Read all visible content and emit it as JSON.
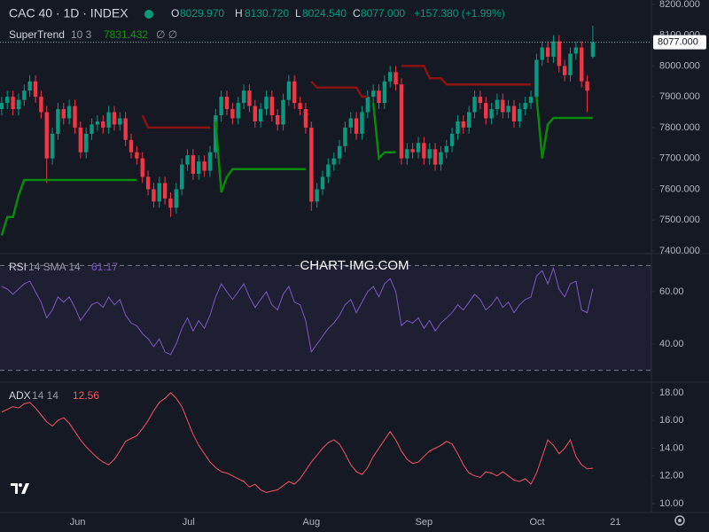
{
  "watermark": "CHART-IMG.COM",
  "chart_data": [
    {
      "type": "candlestick",
      "title": "CAC 40 · 1D · INDEX",
      "legend_values": [
        {
          "key": "O",
          "value": 8029.97,
          "label": "8029.970"
        },
        {
          "key": "H",
          "value": 8130.72,
          "label": "8130.720"
        },
        {
          "key": "L",
          "value": 8024.54,
          "label": "8024.540"
        },
        {
          "key": "C",
          "value": 8077,
          "label": "8077.000"
        }
      ],
      "change_label": "+157.380 (+1.99%)",
      "up_color": "#089981",
      "down_color": "#f23645",
      "ylim": [
        7394,
        8214
      ],
      "yticks": [
        {
          "value": 7400,
          "label": "7400.000"
        },
        {
          "value": 7500,
          "label": "7500.000"
        },
        {
          "value": 7600,
          "label": "7600.000"
        },
        {
          "value": 7700,
          "label": "7700.000"
        },
        {
          "value": 7800,
          "label": "7800.000"
        },
        {
          "value": 7900,
          "label": "7900.000"
        },
        {
          "value": 8000,
          "label": "8000.000"
        },
        {
          "value": 8100,
          "label": "8100.000"
        },
        {
          "value": 8200,
          "label": "8200.000"
        }
      ],
      "xlim": [
        -0.3,
        115.4
      ],
      "xticks": [
        {
          "value": 13.5,
          "label": "Jun"
        },
        {
          "value": 33.2,
          "label": "Jul"
        },
        {
          "value": 55,
          "label": "Aug"
        },
        {
          "value": 75,
          "label": "Sep"
        },
        {
          "value": 95.1,
          "label": "Oct"
        },
        {
          "value": 109,
          "label": "21"
        }
      ],
      "open": [
        7860,
        7880,
        7900,
        7860,
        7890,
        7920,
        7950,
        7900,
        7850,
        7700,
        7780,
        7860,
        7830,
        7870,
        7800,
        7720,
        7780,
        7810,
        7820,
        7800,
        7850,
        7810,
        7830,
        7760,
        7720,
        7700,
        7640,
        7600,
        7560,
        7620,
        7570,
        7540,
        7600,
        7680,
        7710,
        7650,
        7690,
        7660,
        7720,
        7840,
        7900,
        7860,
        7830,
        7880,
        7920,
        7870,
        7820,
        7860,
        7900,
        7840,
        7810,
        7890,
        7950,
        7880,
        7860,
        7800,
        7560,
        7600,
        7640,
        7680,
        7700,
        7740,
        7800,
        7830,
        7780,
        7850,
        7900,
        7920,
        7880,
        7950,
        7980,
        7940,
        7700,
        7730,
        7720,
        7750,
        7700,
        7730,
        7680,
        7720,
        7740,
        7780,
        7820,
        7800,
        7850,
        7900,
        7880,
        7830,
        7860,
        7890,
        7850,
        7870,
        7820,
        7860,
        7880,
        7900,
        8020,
        8060,
        8030,
        8080,
        8000,
        7970,
        8040,
        8060,
        7950,
        8029.97
      ],
      "high": [
        7900,
        7920,
        7920,
        7910,
        7940,
        7970,
        7970,
        7920,
        7870,
        7800,
        7880,
        7880,
        7890,
        7890,
        7820,
        7800,
        7830,
        7840,
        7840,
        7870,
        7870,
        7850,
        7850,
        7780,
        7740,
        7720,
        7660,
        7620,
        7640,
        7640,
        7590,
        7620,
        7700,
        7730,
        7730,
        7710,
        7710,
        7740,
        7860,
        7920,
        7920,
        7880,
        7900,
        7940,
        7940,
        7890,
        7880,
        7920,
        7920,
        7860,
        7910,
        7970,
        7970,
        7900,
        7880,
        7820,
        7620,
        7660,
        7700,
        7720,
        7760,
        7820,
        7850,
        7850,
        7870,
        7920,
        7940,
        7940,
        7970,
        8000,
        8000,
        7960,
        7750,
        7750,
        7770,
        7770,
        7750,
        7750,
        7740,
        7760,
        7800,
        7840,
        7840,
        7870,
        7920,
        7920,
        7900,
        7880,
        7910,
        7910,
        7890,
        7890,
        7880,
        7900,
        7920,
        8040,
        8080,
        8080,
        8100,
        8100,
        8020,
        8060,
        8080,
        8080,
        7970,
        8130.72
      ],
      "low": [
        7840,
        7860,
        7840,
        7840,
        7870,
        7900,
        7880,
        7830,
        7620,
        7680,
        7760,
        7810,
        7810,
        7780,
        7700,
        7700,
        7760,
        7790,
        7780,
        7780,
        7790,
        7790,
        7740,
        7700,
        7680,
        7620,
        7580,
        7540,
        7540,
        7550,
        7510,
        7520,
        7580,
        7660,
        7630,
        7630,
        7640,
        7640,
        7700,
        7820,
        7840,
        7810,
        7810,
        7860,
        7850,
        7800,
        7800,
        7840,
        7820,
        7790,
        7790,
        7870,
        7860,
        7840,
        7780,
        7530,
        7540,
        7580,
        7620,
        7660,
        7680,
        7720,
        7780,
        7760,
        7760,
        7830,
        7880,
        7860,
        7860,
        7930,
        7920,
        7680,
        7680,
        7700,
        7700,
        7680,
        7680,
        7660,
        7660,
        7700,
        7720,
        7760,
        7780,
        7780,
        7830,
        7860,
        7810,
        7810,
        7840,
        7830,
        7830,
        7800,
        7800,
        7840,
        7860,
        7880,
        8000,
        8010,
        8010,
        7980,
        7950,
        7950,
        8020,
        7930,
        7850,
        8024.54
      ],
      "close": [
        7880,
        7900,
        7860,
        7890,
        7920,
        7950,
        7900,
        7850,
        7700,
        7780,
        7860,
        7830,
        7870,
        7800,
        7720,
        7780,
        7810,
        7820,
        7800,
        7850,
        7810,
        7830,
        7760,
        7720,
        7700,
        7640,
        7600,
        7560,
        7620,
        7570,
        7540,
        7600,
        7680,
        7710,
        7650,
        7690,
        7660,
        7720,
        7840,
        7900,
        7860,
        7830,
        7880,
        7920,
        7870,
        7820,
        7860,
        7900,
        7840,
        7810,
        7890,
        7950,
        7880,
        7860,
        7800,
        7560,
        7600,
        7640,
        7680,
        7700,
        7740,
        7800,
        7830,
        7780,
        7850,
        7900,
        7920,
        7880,
        7950,
        7980,
        7940,
        7700,
        7730,
        7720,
        7750,
        7700,
        7730,
        7680,
        7720,
        7740,
        7780,
        7820,
        7800,
        7850,
        7900,
        7880,
        7830,
        7860,
        7890,
        7850,
        7870,
        7820,
        7860,
        7880,
        7900,
        8020,
        8060,
        8030,
        8080,
        8000,
        7970,
        8040,
        8060,
        7950,
        7919.62,
        8077
      ],
      "indicator": {
        "name": "SuperTrend",
        "params": "10 3",
        "flags": "∅ ∅",
        "up": {
          "color": "#0a8a0a",
          "values": [
            7450,
            7510,
            7510,
            7580,
            7630,
            7630,
            7630,
            7630,
            7630,
            7630,
            7630,
            7630,
            7630,
            7630,
            7630,
            7630,
            7630,
            7630,
            7630,
            7630,
            7630,
            7630,
            7630,
            7630,
            7630,
            null,
            null,
            null,
            null,
            null,
            null,
            null,
            null,
            null,
            null,
            null,
            null,
            null,
            7820,
            7590,
            7640,
            7665,
            7665,
            7665,
            7665,
            7665,
            7665,
            7665,
            7665,
            7665,
            7665,
            7665,
            7665,
            7665,
            7665,
            null,
            null,
            null,
            null,
            null,
            null,
            null,
            null,
            null,
            null,
            null,
            7880,
            7700,
            7720,
            7720,
            7720,
            null,
            null,
            null,
            null,
            null,
            null,
            null,
            null,
            null,
            null,
            null,
            null,
            null,
            null,
            null,
            null,
            null,
            null,
            null,
            null,
            null,
            null,
            null,
            null,
            7900,
            7700,
            7810,
            7831.432,
            7831.432,
            7831.432,
            7831.432,
            7831.432,
            7831.432,
            7831.432,
            7831.432
          ]
        },
        "down": {
          "color": "#8b1212",
          "values": [
            null,
            null,
            null,
            null,
            null,
            null,
            null,
            null,
            null,
            null,
            null,
            null,
            null,
            null,
            null,
            null,
            null,
            null,
            null,
            null,
            null,
            null,
            null,
            null,
            null,
            7840,
            7800,
            7800,
            7800,
            7800,
            7800,
            7800,
            7800,
            7800,
            7800,
            7800,
            7800,
            7800,
            null,
            null,
            null,
            null,
            null,
            null,
            null,
            null,
            null,
            null,
            null,
            null,
            null,
            null,
            null,
            null,
            null,
            7950,
            7930,
            7930,
            7930,
            7930,
            7930,
            7930,
            7930,
            7930,
            7900,
            7900,
            null,
            null,
            null,
            null,
            null,
            8000,
            8000,
            8000,
            8000,
            8000,
            7960,
            7960,
            7960,
            7940,
            7940,
            7940,
            7940,
            7940,
            7940,
            7940,
            7940,
            7940,
            7940,
            7940,
            7940,
            7940,
            7940,
            7940,
            7940,
            null,
            null,
            null,
            null,
            null,
            null,
            null,
            null,
            null,
            null,
            null
          ]
        }
      }
    },
    {
      "type": "line",
      "name": "RSI",
      "params": "14 SMA 14",
      "color": "#7e57c2",
      "ylim": [
        25.8,
        74.2
      ],
      "yticks": [
        {
          "value": 40,
          "label": "40.00"
        },
        {
          "value": 60,
          "label": "60.00"
        }
      ],
      "bands": [
        30,
        70
      ],
      "values": [
        62,
        61,
        59,
        61,
        63,
        64,
        60,
        56,
        50,
        53,
        58,
        56,
        58,
        54,
        49,
        52,
        55,
        56,
        54,
        58,
        55,
        57,
        51,
        48,
        47,
        44,
        42,
        39,
        42,
        37,
        36,
        40,
        46,
        50,
        45,
        49,
        46,
        51,
        58,
        63,
        60,
        57,
        60,
        63,
        58,
        54,
        57,
        60,
        55,
        53,
        59,
        62,
        56,
        55,
        49,
        37,
        40,
        43,
        46,
        48,
        51,
        55,
        57,
        52,
        56,
        60,
        62,
        58,
        63,
        65,
        60,
        47,
        49,
        48,
        50,
        46,
        49,
        45,
        48,
        50,
        52,
        55,
        53,
        56,
        59,
        57,
        53,
        55,
        58,
        54,
        56,
        52,
        55,
        57,
        58,
        66,
        68,
        63,
        69,
        61,
        58,
        63,
        64,
        53,
        52,
        61.17
      ]
    },
    {
      "type": "line",
      "name": "ADX",
      "params": "14 14",
      "color": "#f7525f",
      "ylim": [
        9.36,
        18.7
      ],
      "yticks": [
        {
          "value": 10,
          "label": "10.00"
        },
        {
          "value": 12,
          "label": "12.00"
        },
        {
          "value": 14,
          "label": "14.00"
        },
        {
          "value": 16,
          "label": "16.00"
        },
        {
          "value": 18,
          "label": "18.00"
        }
      ],
      "values": [
        16.6,
        16.8,
        17.0,
        16.9,
        17.2,
        17.3,
        16.9,
        16.4,
        15.9,
        15.6,
        16.0,
        16.2,
        15.8,
        15.2,
        14.6,
        14.1,
        13.7,
        13.3,
        13.0,
        12.8,
        13.2,
        13.8,
        14.5,
        14.7,
        14.9,
        15.4,
        16.0,
        16.7,
        17.3,
        17.6,
        18.0,
        17.6,
        17.0,
        16.0,
        15.0,
        14.2,
        13.6,
        13.0,
        12.6,
        12.3,
        12.2,
        12.0,
        11.8,
        11.6,
        11.2,
        11.4,
        11.0,
        10.8,
        10.9,
        11.0,
        11.3,
        11.6,
        11.4,
        11.8,
        12.4,
        13.0,
        13.5,
        14.0,
        14.4,
        14.6,
        14.3,
        13.6,
        12.8,
        12.3,
        12.1,
        12.6,
        13.4,
        14.0,
        14.6,
        15.2,
        14.6,
        13.8,
        13.2,
        12.9,
        13.0,
        13.4,
        13.8,
        14.0,
        14.2,
        14.5,
        14.3,
        13.6,
        12.8,
        12.2,
        12.0,
        11.9,
        12.3,
        12.2,
        12.0,
        12.3,
        12.0,
        11.7,
        11.6,
        11.8,
        11.4,
        12.2,
        13.4,
        14.6,
        14.2,
        13.6,
        14.0,
        14.6,
        13.4,
        12.8,
        12.5,
        12.56
      ]
    }
  ]
}
